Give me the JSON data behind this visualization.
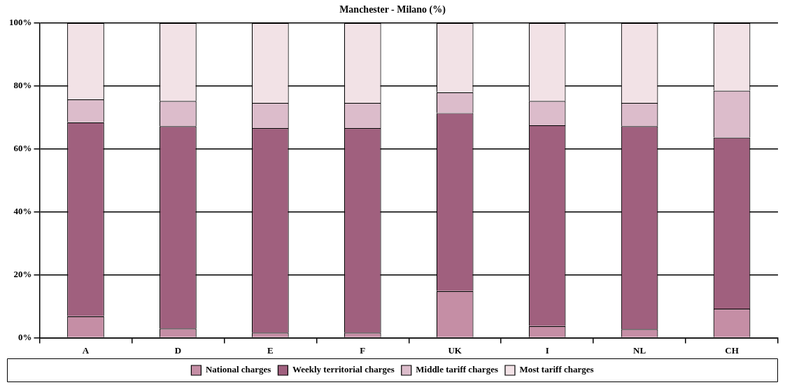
{
  "chart_data": {
    "type": "bar",
    "title": "Manchester - Milano (%)",
    "stacked": true,
    "grid": "y",
    "legend": "bottom",
    "categories": [
      "A",
      "D",
      "E",
      "F",
      "UK",
      "I",
      "NL",
      "CH"
    ],
    "series": [
      {
        "name": "National charges",
        "color": "#c58ea5",
        "values": [
          6.8,
          2.9,
          1.6,
          1.6,
          14.8,
          3.7,
          2.7,
          9.2
        ]
      },
      {
        "name": "Weekly territorial charges",
        "color": "#a0607e",
        "values": [
          61.6,
          64.3,
          65.0,
          65.0,
          56.6,
          63.8,
          64.5,
          54.4
        ]
      },
      {
        "name": "Middle tariff charges",
        "color": "#dcbccb",
        "values": [
          7.3,
          8.0,
          8.0,
          8.0,
          6.6,
          7.7,
          7.4,
          14.9
        ]
      },
      {
        "name": "Most tariff charges",
        "color": "#f2e2e6",
        "values": [
          24.3,
          24.8,
          25.4,
          25.4,
          22.0,
          24.8,
          25.4,
          21.5
        ]
      }
    ],
    "ylim": [
      0,
      100
    ],
    "yticks": [
      {
        "value": 0,
        "label": "0%"
      },
      {
        "value": 20,
        "label": "20%"
      },
      {
        "value": 40,
        "label": "40%"
      },
      {
        "value": 60,
        "label": "60%"
      },
      {
        "value": 80,
        "label": "80%"
      },
      {
        "value": 100,
        "label": "100%"
      }
    ]
  }
}
